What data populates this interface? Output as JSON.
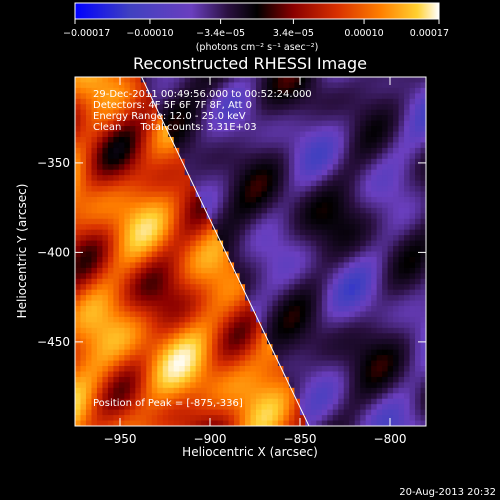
{
  "chart_data": {
    "type": "heatmap",
    "title": "Reconstructed RHESSI Image",
    "xlabel": "Heliocentric X (arcsec)",
    "ylabel": "Heliocentric Y (arcsec)",
    "xlim": [
      -975,
      -780
    ],
    "ylim": [
      -497,
      -302
    ],
    "x_ticks": [
      -950,
      -900,
      -850,
      -800
    ],
    "x_tick_labels": [
      "−950",
      "−900",
      "−850",
      "−800"
    ],
    "y_ticks": [
      -350,
      -400,
      -450
    ],
    "y_tick_labels": [
      "−350",
      "−400",
      "−450"
    ],
    "colorbar": {
      "range": [
        -0.00017,
        0.00017
      ],
      "ticks": [
        -0.00017,
        -0.0001,
        -3.4e-05,
        3.4e-05,
        0.0001,
        0.00017
      ],
      "tick_labels": [
        "−0.00017",
        "−0.00010",
        "−3.4e−05",
        "3.4e−05",
        "0.00010",
        "0.00017"
      ],
      "unit_label": "(photons cm⁻² s⁻¹ asec⁻²)",
      "colormap": [
        "#0000ff",
        "#4040c0",
        "#6a3fbf",
        "#2a1040",
        "#000000",
        "#8a0000",
        "#d83000",
        "#ff7f00",
        "#ffd030",
        "#ffffff"
      ]
    },
    "annotations": [
      "29-Dec-2011 00:49:56.000 to 00:52:24.000",
      "Detectors: 4F 5F 6F 7F 8F, Att 0",
      "Energy Range: 12.0 - 25.0 keV",
      "Clean      Total counts: 3.31E+03"
    ],
    "peak_label": "Position of Peak = [-875,-336]",
    "peak_position": [
      -875,
      -336
    ],
    "limb_line": [
      [
        -938,
        -302
      ],
      [
        -845,
        -497
      ]
    ],
    "grid": false
  },
  "timestamp": "20-Aug-2013 20:32"
}
